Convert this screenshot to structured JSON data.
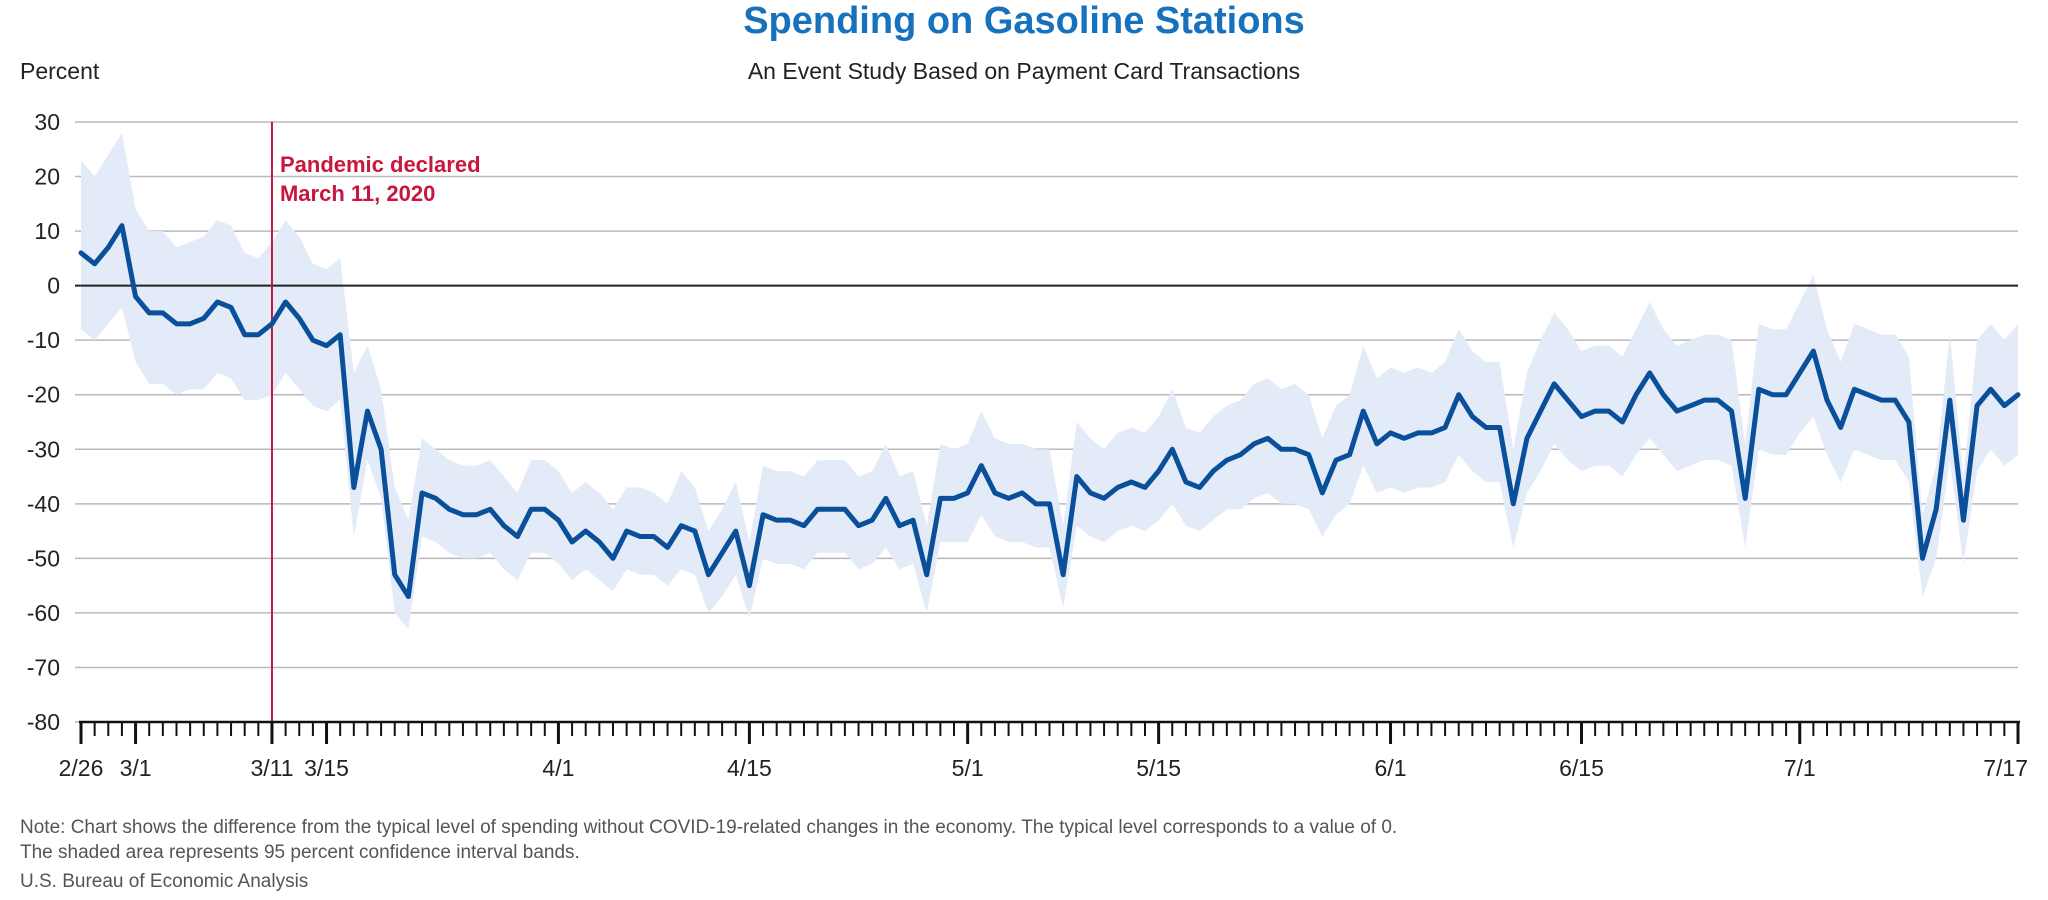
{
  "header": {
    "title": "Spending on Gasoline Stations",
    "subtitle": "An Event Study Based on Payment Card Transactions",
    "ylabel": "Percent"
  },
  "footer": {
    "note_line1": "Note: Chart shows the difference from the typical level of spending without COVID-19-related changes in the economy. The typical level corresponds to a value of 0.",
    "note_line2": "The shaded area represents 95 percent confidence interval bands.",
    "source": "U.S. Bureau of Economic Analysis"
  },
  "colors": {
    "line": "#0a4f9a",
    "band": "#e2ebf7",
    "event": "#c8173f",
    "grid": "#b9b9b9",
    "zero": "#222222",
    "title": "#1672bd"
  },
  "chart_data": {
    "type": "line",
    "title": "Spending on Gasoline Stations",
    "subtitle": "An Event Study Based on Payment Card Transactions",
    "ylabel": "Percent",
    "xlabel": "",
    "ylim": [
      -80,
      30
    ],
    "yticks": [
      30,
      20,
      10,
      0,
      -10,
      -20,
      -30,
      -40,
      -50,
      -60,
      -70,
      -80
    ],
    "x_start": "2/26",
    "x_end": "7/17",
    "x_tick_labels": [
      {
        "label": "2/26",
        "day": 0
      },
      {
        "label": "3/1",
        "day": 4
      },
      {
        "label": "3/11",
        "day": 14
      },
      {
        "label": "3/15",
        "day": 18
      },
      {
        "label": "4/1",
        "day": 35
      },
      {
        "label": "4/15",
        "day": 49
      },
      {
        "label": "5/1",
        "day": 65
      },
      {
        "label": "5/15",
        "day": 79
      },
      {
        "label": "6/1",
        "day": 96
      },
      {
        "label": "6/15",
        "day": 110
      },
      {
        "label": "7/1",
        "day": 126
      },
      {
        "label": "7/17",
        "day": 142
      }
    ],
    "grid": true,
    "event": {
      "day": 14,
      "label_line1": "Pandemic declared",
      "label_line2": "March 11, 2020"
    },
    "series": [
      {
        "values": [
          6,
          4,
          7,
          11,
          -2,
          -5,
          -5,
          -7,
          -7,
          -6,
          -3,
          -4,
          -9,
          -9,
          -7,
          -3,
          -6,
          -10,
          -11,
          -9,
          -37,
          -23,
          -30,
          -53,
          -57,
          -38,
          -39,
          -41,
          -42,
          -42,
          -41,
          -44,
          -46,
          -41,
          -41,
          -43,
          -47,
          -45,
          -47,
          -50,
          -45,
          -46,
          -46,
          -48,
          -44,
          -45,
          -53,
          -49,
          -45,
          -55,
          -42,
          -43,
          -43,
          -44,
          -41,
          -41,
          -41,
          -44,
          -43,
          -39,
          -44,
          -43,
          -53,
          -39,
          -39,
          -38,
          -33,
          -38,
          -39,
          -38,
          -40,
          -40,
          -53,
          -35,
          -38,
          -39,
          -37,
          -36,
          -37,
          -34,
          -30,
          -36,
          -37,
          -34,
          -32,
          -31,
          -29,
          -28,
          -30,
          -30,
          -31,
          -38,
          -32,
          -31,
          -23,
          -29,
          -27,
          -28,
          -27,
          -27,
          -26,
          -20,
          -24,
          -26,
          -26,
          -40,
          -28,
          -23,
          -18,
          -21,
          -24,
          -23,
          -23,
          -25,
          -20,
          -16,
          -20,
          -23,
          -22,
          -21,
          -21,
          -23,
          -39,
          -19,
          -20,
          -20,
          -16,
          -12,
          -21,
          -26,
          -19,
          -20,
          -21,
          -21,
          -25,
          -50,
          -41,
          -21,
          -43,
          -22,
          -19,
          -22,
          -20
        ],
        "upper": [
          23,
          20,
          24,
          28,
          14,
          10,
          10,
          7,
          8,
          9,
          12,
          11,
          6,
          5,
          8,
          12,
          9,
          4,
          3,
          5,
          -16,
          -11,
          -19,
          -37,
          -43,
          -28,
          -30,
          -32,
          -33,
          -33,
          -32,
          -35,
          -38,
          -32,
          -32,
          -34,
          -38,
          -36,
          -38,
          -41,
          -37,
          -37,
          -38,
          -40,
          -34,
          -37,
          -45,
          -41,
          -36,
          -47,
          -33,
          -34,
          -34,
          -35,
          -32,
          -32,
          -32,
          -35,
          -34,
          -29,
          -35,
          -34,
          -44,
          -29,
          -30,
          -29,
          -23,
          -28,
          -29,
          -29,
          -30,
          -30,
          -44,
          -25,
          -28,
          -30,
          -27,
          -26,
          -27,
          -24,
          -19,
          -26,
          -27,
          -24,
          -22,
          -21,
          -18,
          -17,
          -19,
          -18,
          -20,
          -28,
          -22,
          -20,
          -11,
          -17,
          -15,
          -16,
          -15,
          -16,
          -14,
          -8,
          -12,
          -14,
          -14,
          -30,
          -16,
          -10,
          -5,
          -8,
          -12,
          -11,
          -11,
          -13,
          -8,
          -3,
          -8,
          -11,
          -10,
          -9,
          -9,
          -10,
          -29,
          -7,
          -8,
          -8,
          -3,
          2,
          -8,
          -14,
          -7,
          -8,
          -9,
          -9,
          -13,
          -42,
          -33,
          -9,
          -35,
          -10,
          -7,
          -10,
          -7
        ],
        "lower": [
          -8,
          -10,
          -7,
          -4,
          -14,
          -18,
          -18,
          -20,
          -19,
          -19,
          -16,
          -17,
          -21,
          -21,
          -20,
          -16,
          -19,
          -22,
          -23,
          -21,
          -46,
          -32,
          -39,
          -60,
          -63,
          -46,
          -47,
          -49,
          -50,
          -50,
          -49,
          -52,
          -54,
          -49,
          -49,
          -51,
          -54,
          -52,
          -54,
          -56,
          -52,
          -53,
          -53,
          -55,
          -52,
          -53,
          -60,
          -57,
          -53,
          -61,
          -50,
          -51,
          -51,
          -52,
          -49,
          -49,
          -49,
          -52,
          -51,
          -48,
          -52,
          -51,
          -60,
          -47,
          -47,
          -47,
          -42,
          -46,
          -47,
          -47,
          -48,
          -48,
          -59,
          -44,
          -46,
          -47,
          -45,
          -44,
          -45,
          -43,
          -40,
          -44,
          -45,
          -43,
          -41,
          -41,
          -39,
          -38,
          -40,
          -40,
          -41,
          -46,
          -42,
          -40,
          -33,
          -38,
          -37,
          -38,
          -37,
          -37,
          -36,
          -31,
          -34,
          -36,
          -36,
          -48,
          -38,
          -34,
          -29,
          -32,
          -34,
          -33,
          -33,
          -35,
          -31,
          -28,
          -31,
          -34,
          -33,
          -32,
          -32,
          -33,
          -48,
          -30,
          -31,
          -31,
          -27,
          -24,
          -31,
          -36,
          -30,
          -31,
          -32,
          -32,
          -36,
          -57,
          -50,
          -32,
          -51,
          -34,
          -30,
          -33,
          -31
        ]
      }
    ]
  }
}
